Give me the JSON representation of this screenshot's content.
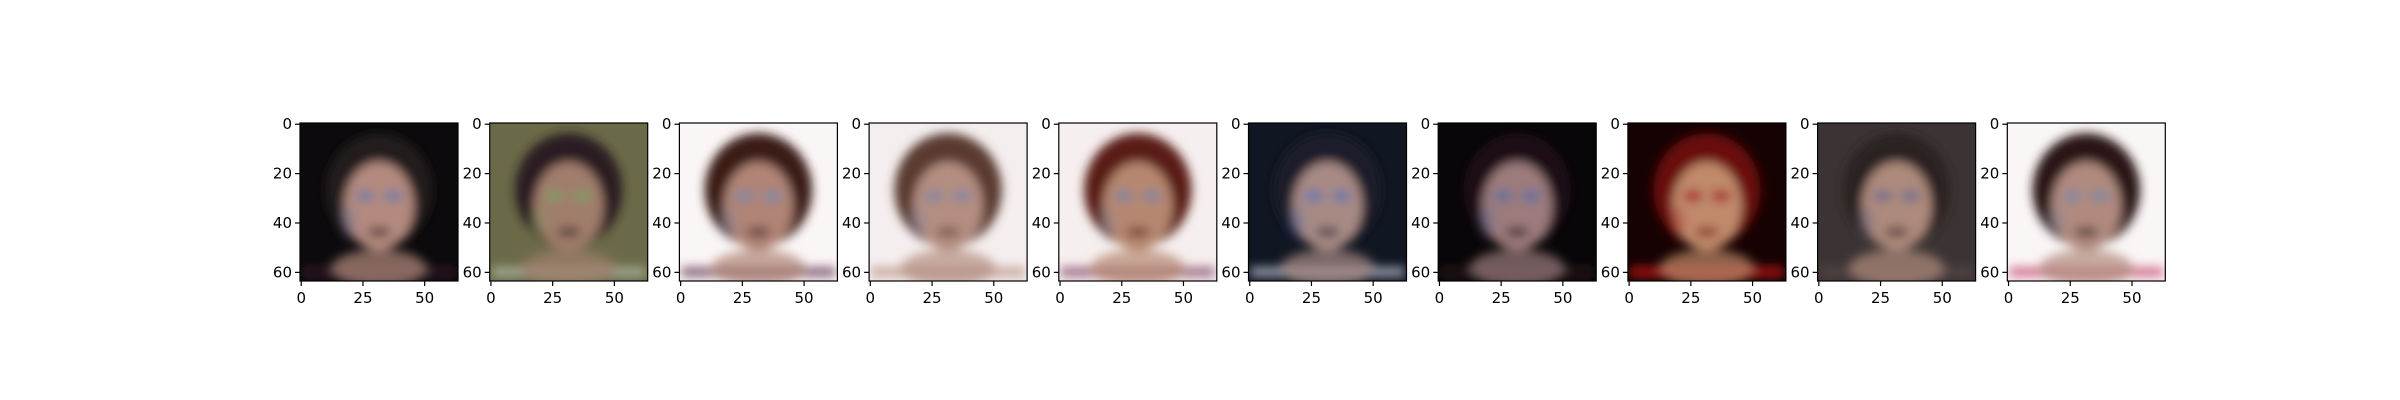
{
  "figure": {
    "panel_count": 10,
    "y_tick_labels": [
      "0",
      "20",
      "40",
      "60"
    ],
    "x_tick_labels": [
      "0",
      "25",
      "50"
    ],
    "y_tick_values": [
      0,
      20,
      40,
      60
    ],
    "x_tick_values": [
      0,
      25,
      50
    ],
    "image_extent": [
      64,
      64
    ],
    "panels": [
      {
        "description": "generated-face-1",
        "background": "#0c0a0c",
        "hair": "#241a1e",
        "skin": "#b48a7e",
        "noise": "#6a7ca8",
        "frame": "#3a2030"
      },
      {
        "description": "generated-face-2",
        "background": "#6b6a48",
        "hair": "#2c1f22",
        "skin": "#a17d6c",
        "noise": "#7aa060",
        "frame": "#b6c0b0"
      },
      {
        "description": "generated-face-3",
        "background": "#fbf6f6",
        "hair": "#3a1a18",
        "skin": "#b08476",
        "noise": "#7a8aa8",
        "frame": "#5a2a50"
      },
      {
        "description": "generated-face-4",
        "background": "#f4eeee",
        "hair": "#5a3a30",
        "skin": "#b48e80",
        "noise": "#7c86a4",
        "frame": "#b88d80"
      },
      {
        "description": "generated-face-5",
        "background": "#f6efef",
        "hair": "#5a1e14",
        "skin": "#b68770",
        "noise": "#7c86a4",
        "frame": "#7a3a60"
      },
      {
        "description": "generated-face-6",
        "background": "#101622",
        "hair": "#1a1e2a",
        "skin": "#a88a84",
        "noise": "#5c74b0",
        "frame": "#c8cfe0"
      },
      {
        "description": "generated-face-7",
        "background": "#080608",
        "hair": "#1a0e12",
        "skin": "#9c7c7c",
        "noise": "#5c6ca0",
        "frame": "#2c1820"
      },
      {
        "description": "generated-face-8",
        "background": "#160202",
        "hair": "#6a0808",
        "skin": "#c08a6a",
        "noise": "#a02020",
        "frame": "#e02020"
      },
      {
        "description": "generated-face-9",
        "background": "#3c3434",
        "hair": "#2a2020",
        "skin": "#ae8a7c",
        "noise": "#6a6a90",
        "frame": "#5a4a4a"
      },
      {
        "description": "generated-face-10",
        "background": "#faf6f6",
        "hair": "#2a1414",
        "skin": "#b08a7e",
        "noise": "#7a88a6",
        "frame": "#c0406a"
      }
    ]
  }
}
